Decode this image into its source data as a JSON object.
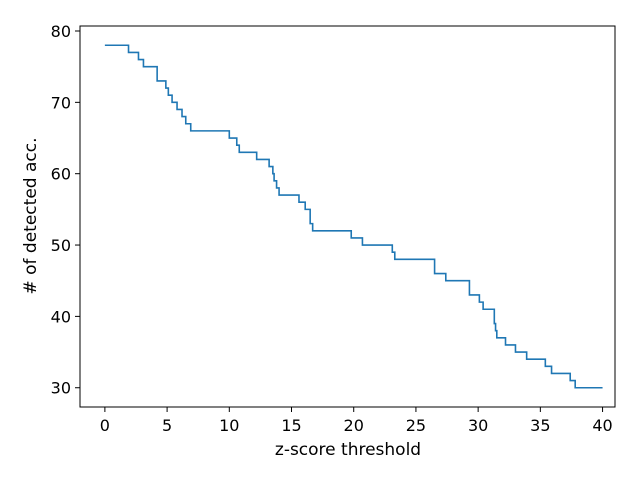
{
  "chart_data": {
    "type": "line",
    "title": "",
    "xlabel": "z-score threshold",
    "ylabel": "# of detected acc.",
    "xlim": [
      -2,
      41
    ],
    "ylim": [
      27.3,
      80.7
    ],
    "xticks": [
      0,
      5,
      10,
      15,
      20,
      25,
      30,
      35,
      40
    ],
    "yticks": [
      30,
      40,
      50,
      60,
      70,
      80
    ],
    "grid": false,
    "legend": "none",
    "line_color": "#1f77b4",
    "series": [
      {
        "step": "post",
        "x": [
          0,
          1.9,
          2.7,
          3.0,
          3.1,
          4.2,
          4.9,
          5.1,
          5.4,
          5.5,
          5.8,
          6.2,
          6.5,
          6.7,
          6.9,
          10.0,
          10.6,
          10.8,
          12.2,
          13.2,
          13.4,
          13.5,
          13.6,
          13.7,
          13.8,
          14.0,
          15.6,
          16.0,
          16.1,
          16.5,
          16.7,
          19.8,
          20.7,
          23.1,
          23.3,
          26.5,
          27.4,
          29.3,
          29.6,
          30.1,
          30.4,
          30.8,
          31.3,
          31.4,
          31.5,
          32.2,
          33.0,
          33.9,
          34.3,
          35.4,
          35.9,
          37.4,
          37.8,
          38.6,
          40.0
        ],
        "y": [
          78,
          77,
          76,
          76,
          75,
          73,
          72,
          71,
          70,
          70,
          69,
          68,
          67,
          67,
          66,
          65,
          64,
          63,
          62,
          61,
          61,
          60,
          59,
          59,
          58,
          57,
          56,
          56,
          55,
          53,
          52,
          51,
          50,
          49,
          48,
          46,
          45,
          43,
          43,
          42,
          41,
          41,
          39,
          38,
          37,
          36,
          35,
          34,
          34,
          33,
          32,
          31,
          30,
          30,
          30
        ]
      }
    ]
  }
}
